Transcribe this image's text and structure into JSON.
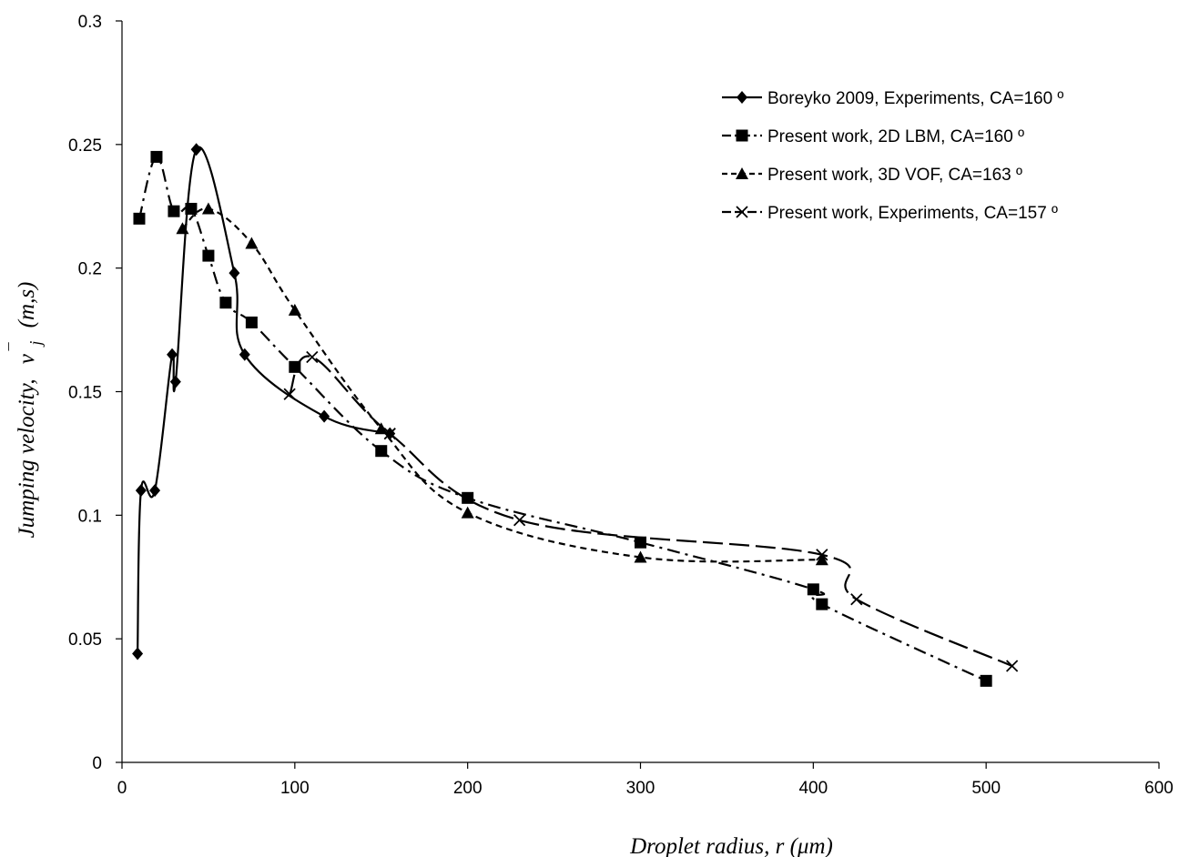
{
  "chart_data": {
    "type": "line",
    "title": "",
    "xlabel": "Droplet radius, r (μm)",
    "ylabel_prefix": "Jumping velocity,",
    "ylabel_symbol": "v",
    "ylabel_sub": "j",
    "ylabel_sup": "¯",
    "ylabel_units": "(m,s)",
    "xlim": [
      0,
      600
    ],
    "ylim": [
      0,
      0.3
    ],
    "xticks": [
      0,
      100,
      200,
      300,
      400,
      500,
      600
    ],
    "yticks": [
      0,
      0.05,
      0.1,
      0.15,
      0.2,
      0.25,
      0.3
    ],
    "xtick_labels": [
      "0",
      "100",
      "200",
      "300",
      "400",
      "500",
      "600"
    ],
    "ytick_labels": [
      "0",
      "0.05",
      "0.1",
      "0.15",
      "0.2",
      "0.25",
      "0.3"
    ],
    "grid": false,
    "legend_position": "top-right",
    "series": [
      {
        "name": "Boreyko 2009, Experiments, CA=160 º",
        "marker": "diamond",
        "dash": "solid",
        "x": [
          9,
          11,
          19,
          29,
          31,
          43,
          65,
          71,
          117,
          155
        ],
        "y": [
          0.044,
          0.11,
          0.11,
          0.165,
          0.154,
          0.248,
          0.198,
          0.165,
          0.14,
          0.133
        ]
      },
      {
        "name": "Present work, 2D LBM, CA=160 º",
        "marker": "square",
        "dash": "dashdot",
        "x": [
          10,
          20,
          30,
          40,
          50,
          60,
          75,
          100,
          150,
          200,
          300,
          400,
          405,
          500
        ],
        "y": [
          0.22,
          0.245,
          0.223,
          0.224,
          0.205,
          0.186,
          0.178,
          0.16,
          0.126,
          0.107,
          0.089,
          0.07,
          0.064,
          0.033
        ]
      },
      {
        "name": "Present work, 3D VOF, CA=163 º",
        "marker": "triangle",
        "dash": "shortdash",
        "x": [
          35,
          50,
          75,
          100,
          150,
          200,
          300,
          405
        ],
        "y": [
          0.216,
          0.224,
          0.21,
          0.183,
          0.135,
          0.101,
          0.083,
          0.082
        ]
      },
      {
        "name": "Present work, Experiments, CA=157 º",
        "marker": "x",
        "dash": "longdash",
        "x": [
          97,
          110,
          155,
          230,
          405,
          425,
          515
        ],
        "y": [
          0.149,
          0.164,
          0.133,
          0.098,
          0.084,
          0.066,
          0.039
        ]
      }
    ]
  }
}
